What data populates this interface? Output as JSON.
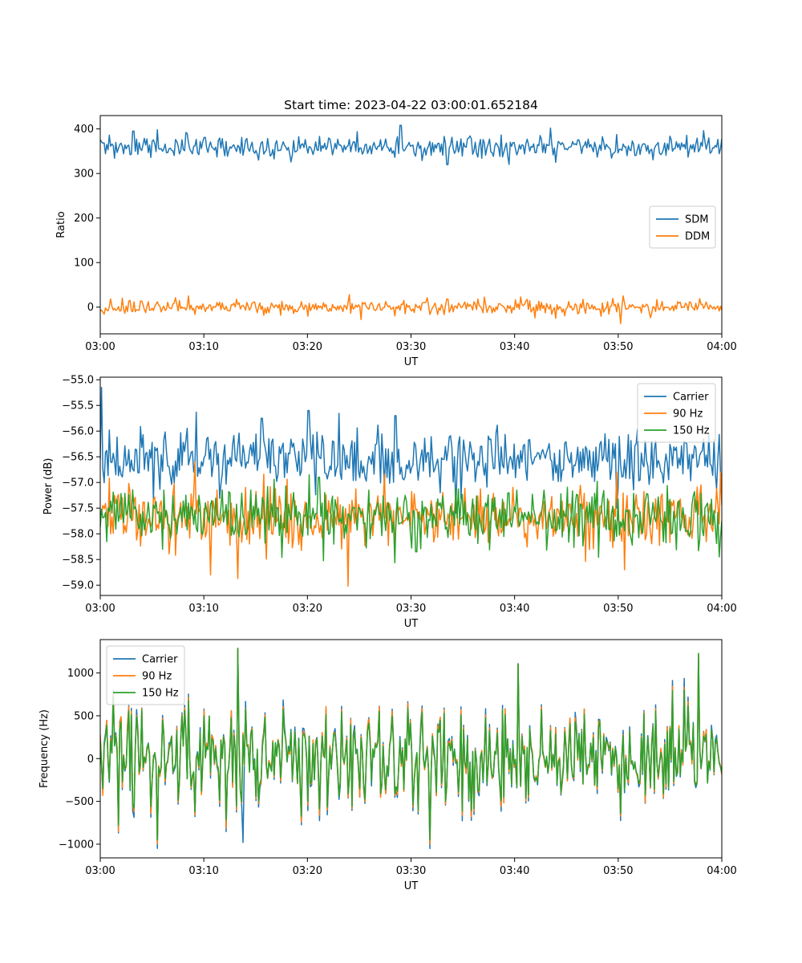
{
  "figure_title": "Start time: 2023-04-22 03:00:01.652184",
  "colors": {
    "blue": "#1f77b4",
    "orange": "#ff7f0e",
    "green": "#2ca02c"
  },
  "chart_data": [
    {
      "type": "line",
      "title": "Start time: 2023-04-22 03:00:01.652184",
      "xlabel": "UT",
      "ylabel": "Ratio",
      "x_range": [
        "03:00",
        "04:00"
      ],
      "x_ticks": [
        "03:00",
        "03:10",
        "03:20",
        "03:30",
        "03:40",
        "03:50",
        "04:00"
      ],
      "ylim": [
        -60,
        430
      ],
      "y_ticks": [
        0,
        100,
        200,
        300,
        400
      ],
      "y_tick_labels": [
        "0",
        "100",
        "200",
        "300",
        "400"
      ],
      "legend_position": "center-right",
      "grid": false,
      "series": [
        {
          "name": "SDM",
          "color": "#1f77b4",
          "mean": 358,
          "noise_sd": 13,
          "spikes": [
            [
              3.2,
              395
            ],
            [
              5.5,
              398
            ],
            [
              8.3,
              392
            ],
            [
              29,
              408
            ],
            [
              43.5,
              402
            ],
            [
              33.5,
              320
            ],
            [
              44,
              325
            ]
          ]
        },
        {
          "name": "DDM",
          "color": "#ff7f0e",
          "mean": 0,
          "noise_sd": 8,
          "spikes": [
            [
              8.5,
              25
            ],
            [
              24,
              28
            ],
            [
              33.5,
              18
            ],
            [
              50.5,
              25
            ],
            [
              50.2,
              -37
            ],
            [
              44,
              -25
            ],
            [
              2.1,
              20
            ]
          ]
        }
      ]
    },
    {
      "type": "line",
      "title": "",
      "xlabel": "UT",
      "ylabel": "Power (dB)",
      "x_range": [
        "03:00",
        "04:00"
      ],
      "x_ticks": [
        "03:00",
        "03:10",
        "03:20",
        "03:30",
        "03:40",
        "03:50",
        "04:00"
      ],
      "ylim": [
        -59.2,
        -54.95
      ],
      "y_ticks": [
        -59.0,
        -58.5,
        -58.0,
        -57.5,
        -57.0,
        -56.5,
        -56.0,
        -55.5,
        -55.0
      ],
      "y_tick_labels": [
        "−59.0",
        "−58.5",
        "−58.0",
        "−57.5",
        "−57.0",
        "−56.5",
        "−56.0",
        "−55.5",
        "−55.0"
      ],
      "legend_position": "top-right",
      "grid": false,
      "series": [
        {
          "name": "Carrier",
          "color": "#1f77b4",
          "mean": -56.55,
          "noise_sd": 0.3,
          "spikes": [
            [
              0.1,
              -55.15
            ],
            [
              20.1,
              -55.6
            ],
            [
              28.5,
              -55.7
            ],
            [
              15.6,
              -55.75
            ],
            [
              34.3,
              -57.6
            ],
            [
              49.8,
              -57.5
            ]
          ]
        },
        {
          "name": "90 Hz",
          "color": "#ff7f0e",
          "mean": -57.7,
          "noise_sd": 0.3,
          "spikes": [
            [
              23.9,
              -59.02
            ],
            [
              13.3,
              -58.87
            ],
            [
              10.6,
              -58.8
            ],
            [
              50.6,
              -58.7
            ],
            [
              9.1,
              -56.6
            ],
            [
              59.9,
              -56.8
            ]
          ]
        },
        {
          "name": "150 Hz",
          "color": "#2ca02c",
          "mean": -57.65,
          "noise_sd": 0.28,
          "spikes": [
            [
              20.2,
              -56.85
            ],
            [
              21.1,
              -56.9
            ],
            [
              59.8,
              -58.45
            ],
            [
              30.5,
              -58.35
            ]
          ]
        }
      ]
    },
    {
      "type": "line",
      "title": "",
      "xlabel": "UT",
      "ylabel": "Frequency (Hz)",
      "x_range": [
        "03:00",
        "04:00"
      ],
      "x_ticks": [
        "03:00",
        "03:10",
        "03:20",
        "03:30",
        "03:40",
        "03:50",
        "04:00"
      ],
      "ylim": [
        -1160,
        1390
      ],
      "y_ticks": [
        -1000,
        -500,
        0,
        500,
        1000
      ],
      "y_tick_labels": [
        "−1000",
        "−500",
        "0",
        "500",
        "1000"
      ],
      "legend_position": "top-left",
      "grid": false,
      "series": [
        {
          "name": "Carrier",
          "color": "#1f77b4",
          "mean": 0,
          "noise_sd": 330,
          "spikes": [
            [
              13.3,
              1280
            ],
            [
              40.3,
              1100
            ],
            [
              57.8,
              1220
            ],
            [
              5.5,
              -1050
            ],
            [
              31.8,
              -1050
            ],
            [
              13.8,
              -980
            ]
          ]
        },
        {
          "name": "90 Hz",
          "color": "#ff7f0e",
          "mean": 0,
          "noise_sd": 330,
          "spikes": [
            [
              13.3,
              1280
            ],
            [
              40.3,
              1100
            ],
            [
              57.8,
              1220
            ],
            [
              5.5,
              -1000
            ],
            [
              31.8,
              -1000
            ]
          ]
        },
        {
          "name": "150 Hz",
          "color": "#2ca02c",
          "mean": 0,
          "noise_sd": 330,
          "spikes": [
            [
              13.3,
              1290
            ],
            [
              40.3,
              1110
            ],
            [
              57.8,
              1230
            ],
            [
              5.5,
              -950
            ],
            [
              31.8,
              -950
            ]
          ]
        }
      ]
    }
  ]
}
